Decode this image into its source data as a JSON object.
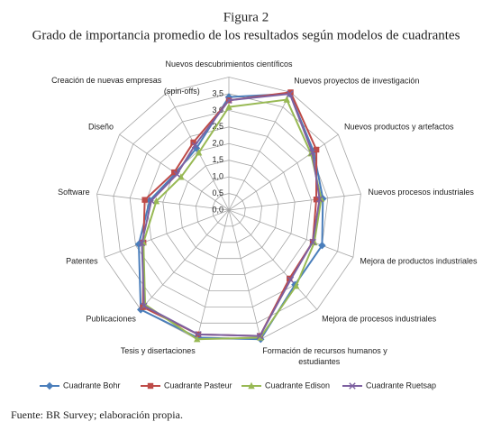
{
  "chart_data": {
    "type": "radar",
    "title": "Figura 2",
    "subtitle": "Grado de importancia promedio de los resultados según modelos de cuadrantes",
    "categories": [
      "Nuevos descubrimientos científicos",
      "Nuevos proyectos de investigación",
      "Nuevos productos y artefactos",
      "Nuevos procesos industriales",
      "Mejora de productos industriales",
      "Mejora de procesos industriales",
      "Formación de recursos humanos y estudiantes",
      "Tesis y disertaciones",
      "Publicaciones",
      "Patentes",
      "Software",
      "Diseño",
      "Creación de nuevas empresas (spin-offs)"
    ],
    "series": [
      {
        "name": "Cuadrante Bohr",
        "color": "#4a7ebb",
        "marker": "diamond",
        "values": [
          3.4,
          3.95,
          3.1,
          2.85,
          3.0,
          3.0,
          4.0,
          3.95,
          4.0,
          2.9,
          2.4,
          1.95,
          2.1
        ]
      },
      {
        "name": "Cuadrante Pasteur",
        "color": "#be4b48",
        "marker": "square",
        "values": [
          3.3,
          4.0,
          3.2,
          2.65,
          2.7,
          2.75,
          3.9,
          3.85,
          3.9,
          2.75,
          2.55,
          2.0,
          2.3
        ]
      },
      {
        "name": "Cuadrante Edison",
        "color": "#98b954",
        "marker": "triangle",
        "values": [
          3.1,
          3.75,
          3.0,
          2.8,
          2.75,
          3.05,
          3.95,
          4.0,
          3.8,
          2.75,
          2.2,
          1.75,
          1.95
        ]
      },
      {
        "name": "Cuadrante Ruetsap",
        "color": "#7d60a0",
        "marker": "x",
        "values": [
          3.3,
          3.95,
          3.05,
          2.75,
          2.7,
          2.8,
          3.9,
          3.85,
          3.85,
          2.8,
          2.35,
          1.9,
          2.2
        ]
      }
    ],
    "ylim": [
      0,
      4
    ],
    "yticks": [
      {
        "value": 0,
        "label": "0,0"
      },
      {
        "value": 0.5,
        "label": "0,5"
      },
      {
        "value": 1,
        "label": "1,0"
      },
      {
        "value": 1.5,
        "label": "1,5"
      },
      {
        "value": 2,
        "label": "2,0"
      },
      {
        "value": 2.5,
        "label": "2,5"
      },
      {
        "value": 3,
        "label": "3,0"
      },
      {
        "value": 3.5,
        "label": "3,5"
      }
    ],
    "grid": true,
    "legend": "bottom",
    "note": "Fuente: BR Survey; elaboración propia."
  }
}
